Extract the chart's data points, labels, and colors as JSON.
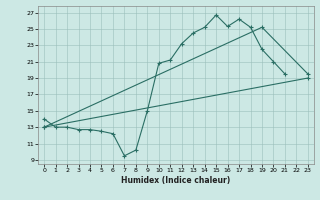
{
  "title": "",
  "xlabel": "Humidex (Indice chaleur)",
  "background_color": "#cce8e4",
  "grid_color": "#b0d0cc",
  "line_color": "#2a6e64",
  "xlim": [
    -0.5,
    23.5
  ],
  "ylim": [
    8.5,
    27.8
  ],
  "yticks": [
    9,
    11,
    13,
    15,
    17,
    19,
    21,
    23,
    25,
    27
  ],
  "xticks": [
    0,
    1,
    2,
    3,
    4,
    5,
    6,
    7,
    8,
    9,
    10,
    11,
    12,
    13,
    14,
    15,
    16,
    17,
    18,
    19,
    20,
    21,
    22,
    23
  ],
  "series1_x": [
    0,
    1,
    2,
    3,
    4,
    5,
    6,
    7,
    8,
    9,
    10,
    11,
    12,
    13,
    14,
    15,
    16,
    17,
    18,
    19,
    20,
    21
  ],
  "series1_y": [
    14.0,
    13.0,
    13.0,
    12.7,
    12.7,
    12.5,
    12.2,
    9.5,
    10.2,
    15.0,
    20.8,
    21.2,
    23.2,
    24.5,
    25.2,
    26.7,
    25.3,
    26.2,
    25.2,
    22.5,
    21.0,
    19.5
  ],
  "series2_x": [
    0,
    23
  ],
  "series2_y": [
    13.0,
    19.0
  ],
  "series3_x": [
    0,
    19,
    23
  ],
  "series3_y": [
    13.0,
    25.2,
    19.5
  ]
}
